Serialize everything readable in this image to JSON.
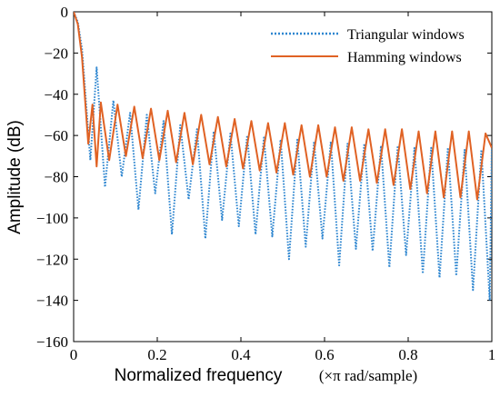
{
  "chart_data": {
    "type": "line",
    "title": "",
    "xlabel": "Normalized frequency",
    "xlabel_unit": "(×π rad/sample)",
    "ylabel": "Amplitude (dB)",
    "xlim": [
      0,
      1
    ],
    "ylim": [
      -160,
      0
    ],
    "x_ticks": [
      0,
      0.2,
      0.4,
      0.6,
      0.8,
      1
    ],
    "x_tick_labels": [
      "0",
      "0.2",
      "0.4",
      "0.6",
      "0.8",
      "1"
    ],
    "y_ticks": [
      0,
      -20,
      -40,
      -60,
      -80,
      -100,
      -120,
      -140,
      -160
    ],
    "y_tick_labels": [
      "0",
      "−20",
      "−40",
      "−60",
      "−80",
      "−100",
      "−120",
      "−140",
      "−160"
    ],
    "grid": false,
    "legend_position": "top-right",
    "series": [
      {
        "name": "Triangular windows",
        "color": "#2E86D0",
        "style": "dotted",
        "x": [
          0,
          0.01,
          0.02,
          0.03,
          0.04,
          0.055,
          0.075,
          0.095,
          0.115,
          0.135,
          0.155,
          0.175,
          0.195,
          0.215,
          0.235,
          0.255,
          0.275,
          0.295,
          0.315,
          0.335,
          0.355,
          0.375,
          0.395,
          0.415,
          0.435,
          0.455,
          0.475,
          0.495,
          0.515,
          0.535,
          0.555,
          0.575,
          0.595,
          0.615,
          0.635,
          0.655,
          0.675,
          0.695,
          0.715,
          0.735,
          0.755,
          0.775,
          0.795,
          0.815,
          0.835,
          0.855,
          0.875,
          0.895,
          0.915,
          0.935,
          0.955,
          0.975,
          0.995,
          1
        ],
        "y": [
          0,
          -5,
          -18,
          -45,
          -72,
          -27,
          -85,
          -43,
          -80,
          -49,
          -96,
          -50,
          -88,
          -53,
          -108,
          -55,
          -91,
          -57,
          -110,
          -58,
          -101,
          -59,
          -104,
          -60,
          -108,
          -61,
          -109,
          -62,
          -120,
          -62,
          -114,
          -63,
          -110,
          -63,
          -123,
          -64,
          -115,
          -64,
          -116,
          -65,
          -124,
          -65,
          -118,
          -66,
          -127,
          -66,
          -129,
          -66,
          -128,
          -67,
          -135,
          -67,
          -140,
          -67
        ]
      },
      {
        "name": "Hamming windows",
        "color": "#E06224",
        "style": "solid",
        "x": [
          0,
          0.01,
          0.02,
          0.03,
          0.035,
          0.045,
          0.055,
          0.065,
          0.085,
          0.105,
          0.125,
          0.145,
          0.165,
          0.185,
          0.205,
          0.225,
          0.245,
          0.265,
          0.285,
          0.305,
          0.325,
          0.345,
          0.365,
          0.385,
          0.405,
          0.425,
          0.445,
          0.465,
          0.485,
          0.505,
          0.525,
          0.545,
          0.565,
          0.585,
          0.605,
          0.625,
          0.645,
          0.665,
          0.685,
          0.705,
          0.725,
          0.745,
          0.765,
          0.785,
          0.805,
          0.825,
          0.845,
          0.865,
          0.885,
          0.905,
          0.925,
          0.945,
          0.965,
          0.985,
          1
        ],
        "y": [
          0,
          -6,
          -22,
          -50,
          -64,
          -45,
          -75,
          -44,
          -72,
          -45,
          -70,
          -46,
          -71,
          -47,
          -72,
          -48,
          -73,
          -49,
          -74,
          -50,
          -74,
          -51,
          -75,
          -52,
          -76,
          -53,
          -77,
          -54,
          -78,
          -54,
          -79,
          -55,
          -80,
          -55,
          -80,
          -56,
          -82,
          -56,
          -82,
          -57,
          -83,
          -57,
          -84,
          -57,
          -86,
          -58,
          -88,
          -58,
          -90,
          -58,
          -90,
          -58,
          -91,
          -59,
          -66
        ]
      }
    ]
  }
}
